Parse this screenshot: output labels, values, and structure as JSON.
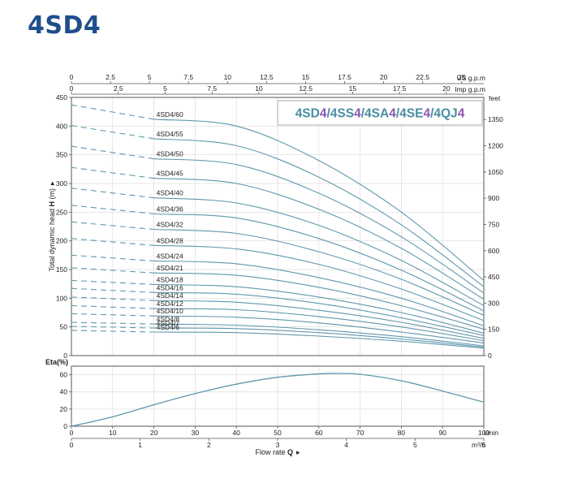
{
  "page": {
    "title": "4SD4"
  },
  "colors": {
    "title": "#1f4e8c",
    "curve": "#5f97ad",
    "badge_main": "#4a8ea0",
    "badge_accent": "#8a55b5",
    "grid": "#dcdcdc",
    "frame": "#555555"
  },
  "badge": {
    "parts": [
      {
        "text": "4SD",
        "accent": false
      },
      {
        "text": "4",
        "accent": true
      },
      {
        "text": "/",
        "accent": false
      },
      {
        "text": "4SS",
        "accent": false
      },
      {
        "text": "4",
        "accent": true
      },
      {
        "text": "/",
        "accent": false
      },
      {
        "text": "4SA",
        "accent": false
      },
      {
        "text": "4",
        "accent": true
      },
      {
        "text": "/",
        "accent": false
      },
      {
        "text": "4SE",
        "accent": false
      },
      {
        "text": "4",
        "accent": true
      },
      {
        "text": "/",
        "accent": false
      },
      {
        "text": "4QJ",
        "accent": false
      },
      {
        "text": "4",
        "accent": true
      }
    ]
  },
  "chart_data": [
    {
      "type": "line",
      "name": "head",
      "xlim": [
        0,
        100
      ],
      "ylim": [
        0,
        450
      ],
      "ylabel_prefix": "Total dynamic head ",
      "ylabel_bold": "H",
      "ylabel_suffix": " (m)",
      "ylabel_marker": "▸",
      "yticks": [
        0,
        50,
        100,
        150,
        200,
        250,
        300,
        350,
        400,
        450
      ],
      "right_axis": {
        "label": "feet",
        "ticks": [
          "0",
          "150",
          "300",
          "450",
          "600",
          "750",
          "900",
          "1050",
          "1200",
          "1350"
        ],
        "ft_per_m": 3.2808
      },
      "top_axis_us": {
        "label": "US g.p.m",
        "ticks": [
          "0",
          "2.5",
          "5",
          "7.5",
          "10",
          "12.5",
          "15",
          "17.5",
          "20",
          "22.5",
          "25"
        ],
        "lmin_per_unit": 3.7854
      },
      "top_axis_imp": {
        "label": "Imp g.p.m",
        "ticks": [
          "0",
          "2.5",
          "5",
          "7.5",
          "10",
          "12.5",
          "15",
          "17.5",
          "20"
        ],
        "lmin_per_unit": 4.5461
      },
      "dashed_until_x": 20,
      "series": [
        {
          "name": "4SD4/60",
          "values": [
            [
              0,
              437
            ],
            [
              20,
              412
            ],
            [
              40,
              400
            ],
            [
              60,
              340
            ],
            [
              80,
              250
            ],
            [
              100,
              131
            ]
          ]
        },
        {
          "name": "4SD4/55",
          "values": [
            [
              0,
              401
            ],
            [
              20,
              378
            ],
            [
              40,
              366
            ],
            [
              60,
              311
            ],
            [
              80,
              228
            ],
            [
              100,
              120
            ]
          ]
        },
        {
          "name": "4SD4/50",
          "values": [
            [
              0,
              365
            ],
            [
              20,
              343
            ],
            [
              40,
              333
            ],
            [
              60,
              283
            ],
            [
              80,
              207
            ],
            [
              100,
              109
            ]
          ]
        },
        {
          "name": "4SD4/45",
          "values": [
            [
              0,
              328
            ],
            [
              20,
              309
            ],
            [
              40,
              300
            ],
            [
              60,
              255
            ],
            [
              80,
              187
            ],
            [
              100,
              98
            ]
          ]
        },
        {
          "name": "4SD4/40",
          "values": [
            [
              0,
              292
            ],
            [
              20,
              275
            ],
            [
              40,
              266
            ],
            [
              60,
              227
            ],
            [
              80,
              166
            ],
            [
              100,
              87
            ]
          ]
        },
        {
          "name": "4SD4/36",
          "values": [
            [
              0,
              262
            ],
            [
              20,
              247
            ],
            [
              40,
              240
            ],
            [
              60,
              204
            ],
            [
              80,
              149
            ],
            [
              100,
              78
            ]
          ]
        },
        {
          "name": "4SD4/32",
          "values": [
            [
              0,
              233
            ],
            [
              20,
              220
            ],
            [
              40,
              213
            ],
            [
              60,
              181
            ],
            [
              80,
              133
            ],
            [
              100,
              70
            ]
          ]
        },
        {
          "name": "4SD4/28",
          "values": [
            [
              0,
              204
            ],
            [
              20,
              192
            ],
            [
              40,
              186
            ],
            [
              60,
              159
            ],
            [
              80,
              116
            ],
            [
              100,
              61
            ]
          ]
        },
        {
          "name": "4SD4/24",
          "values": [
            [
              0,
              175
            ],
            [
              20,
              165
            ],
            [
              40,
              160
            ],
            [
              60,
              136
            ],
            [
              80,
              100
            ],
            [
              100,
              52
            ]
          ]
        },
        {
          "name": "4SD4/21",
          "values": [
            [
              0,
              153
            ],
            [
              20,
              144
            ],
            [
              40,
              140
            ],
            [
              60,
              119
            ],
            [
              80,
              87
            ],
            [
              100,
              46
            ]
          ]
        },
        {
          "name": "4SD4/18",
          "values": [
            [
              0,
              131
            ],
            [
              20,
              124
            ],
            [
              40,
              120
            ],
            [
              60,
              102
            ],
            [
              80,
              75
            ],
            [
              100,
              39
            ]
          ]
        },
        {
          "name": "4SD4/16",
          "values": [
            [
              0,
              117
            ],
            [
              20,
              110
            ],
            [
              40,
              107
            ],
            [
              60,
              91
            ],
            [
              80,
              66
            ],
            [
              100,
              35
            ]
          ]
        },
        {
          "name": "4SD4/14",
          "values": [
            [
              0,
              102
            ],
            [
              20,
              96
            ],
            [
              40,
              93
            ],
            [
              60,
              79
            ],
            [
              80,
              58
            ],
            [
              100,
              30
            ]
          ]
        },
        {
          "name": "4SD4/12",
          "values": [
            [
              0,
              87
            ],
            [
              20,
              82
            ],
            [
              40,
              80
            ],
            [
              60,
              68
            ],
            [
              80,
              50
            ],
            [
              100,
              26
            ]
          ]
        },
        {
          "name": "4SD4/10",
          "values": [
            [
              0,
              73
            ],
            [
              20,
              69
            ],
            [
              40,
              67
            ],
            [
              60,
              57
            ],
            [
              80,
              41
            ],
            [
              100,
              22
            ]
          ]
        },
        {
          "name": "4SD4/8",
          "values": [
            [
              0,
              58
            ],
            [
              20,
              55
            ],
            [
              40,
              53
            ],
            [
              60,
              45
            ],
            [
              80,
              33
            ],
            [
              100,
              17
            ]
          ]
        },
        {
          "name": "4SD4/7",
          "values": [
            [
              0,
              51
            ],
            [
              20,
              48
            ],
            [
              40,
              47
            ],
            [
              60,
              40
            ],
            [
              80,
              29
            ],
            [
              100,
              15
            ]
          ]
        },
        {
          "name": "4SD4/6",
          "values": [
            [
              0,
              44
            ],
            [
              20,
              41
            ],
            [
              40,
              40
            ],
            [
              60,
              34
            ],
            [
              80,
              25
            ],
            [
              100,
              13
            ]
          ]
        }
      ]
    },
    {
      "type": "line",
      "name": "efficiency",
      "xlim": [
        0,
        100
      ],
      "ylim": [
        0,
        70
      ],
      "ylabel": "Eta(%)",
      "yticks": [
        0,
        20,
        40,
        60
      ],
      "xlabel_prefix": "Flow rate ",
      "xlabel_bold": "Q",
      "xlabel_marker": "▸",
      "xticks": [
        0,
        10,
        20,
        30,
        40,
        50,
        60,
        70,
        80,
        90,
        100
      ],
      "x_unit": "l/min",
      "m3h_axis": {
        "label": "m³/h",
        "ticks": [
          "0",
          "1",
          "2",
          "3",
          "4",
          "5",
          "6"
        ],
        "lmin_per_unit": 16.667
      },
      "series": [
        {
          "name": "",
          "values": [
            [
              0,
              0
            ],
            [
              10,
              11
            ],
            [
              20,
              25
            ],
            [
              30,
              38
            ],
            [
              40,
              49
            ],
            [
              50,
              57
            ],
            [
              60,
              61
            ],
            [
              65,
              61.5
            ],
            [
              70,
              60.5
            ],
            [
              80,
              53
            ],
            [
              90,
              41
            ],
            [
              100,
              28
            ]
          ]
        }
      ]
    }
  ]
}
